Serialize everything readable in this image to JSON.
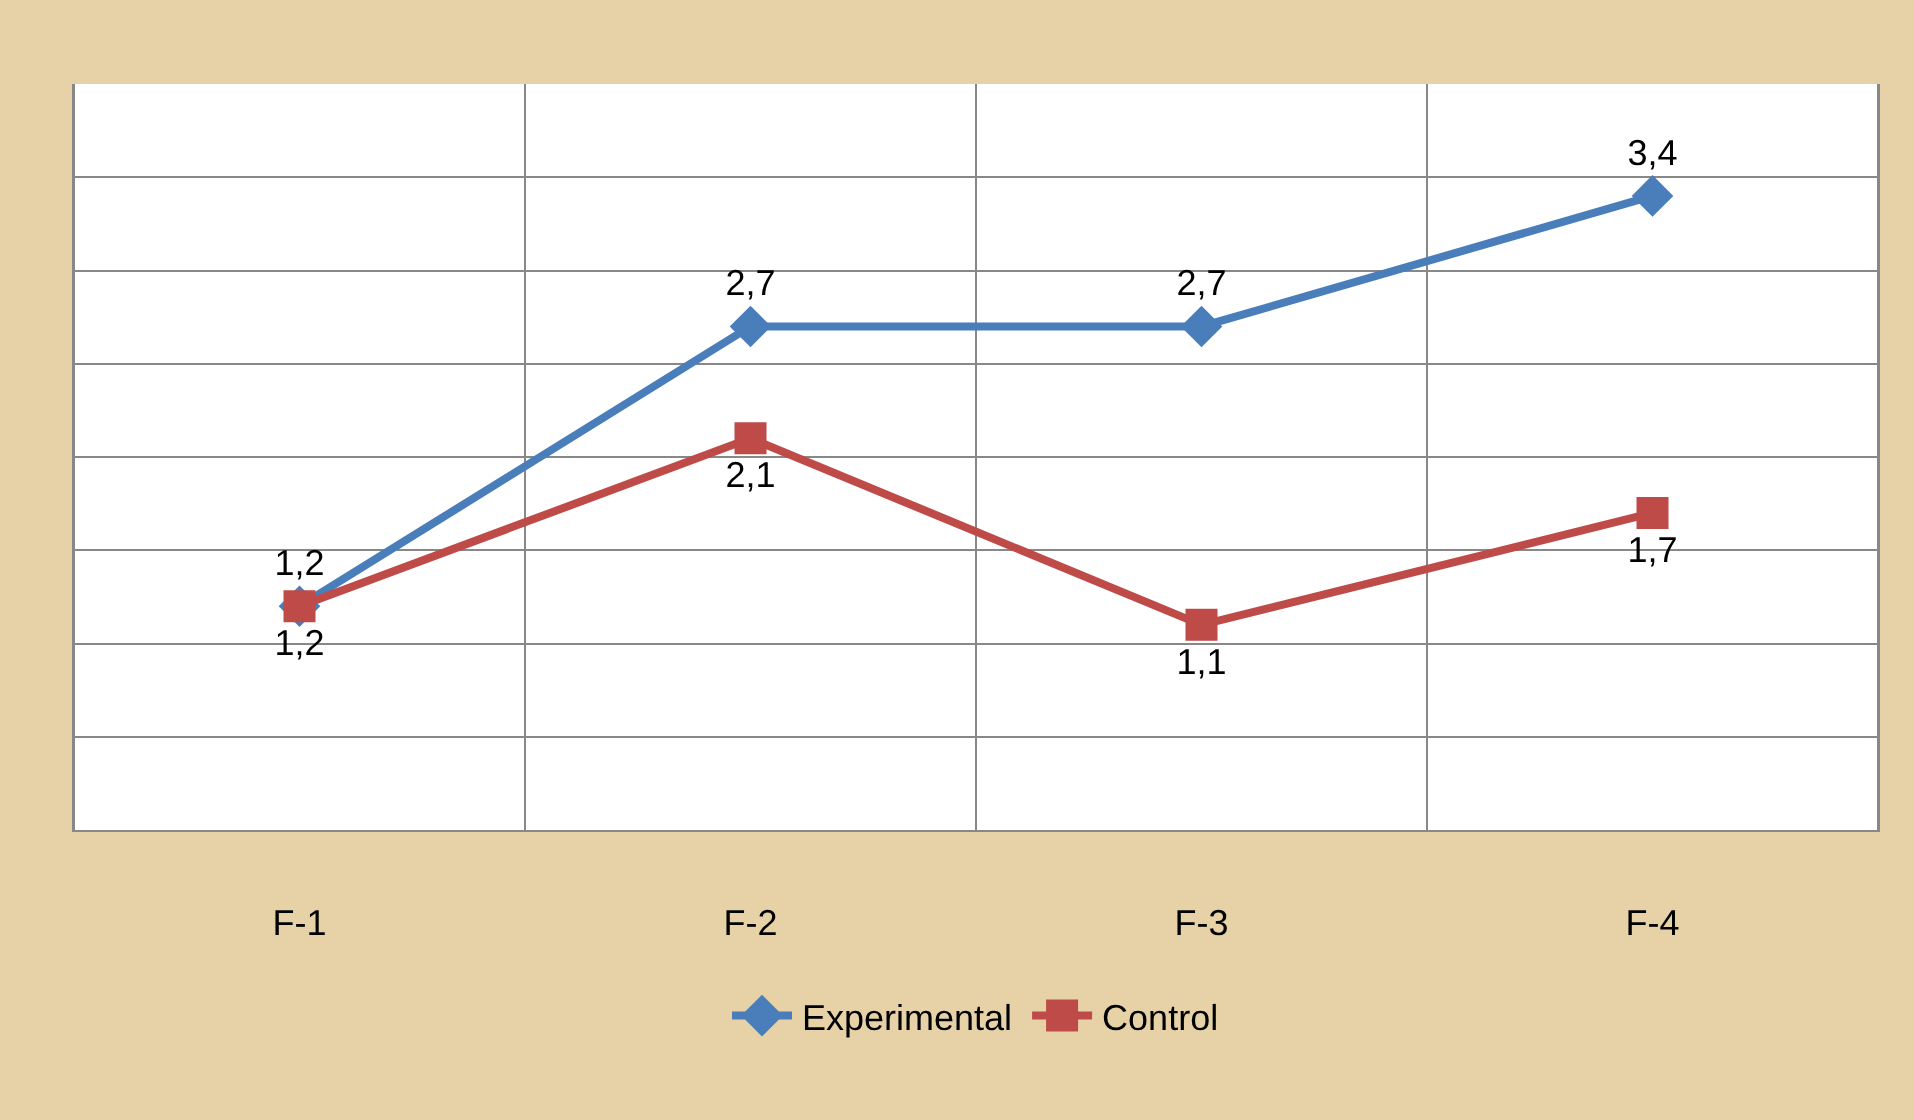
{
  "chart_data": {
    "type": "line",
    "categories": [
      "F-1",
      "F-2",
      "F-3",
      "F-4"
    ],
    "series": [
      {
        "name": "Experimental",
        "color": "#4a7ebb",
        "marker": "diamond",
        "values": [
          1.2,
          2.7,
          2.7,
          3.4
        ],
        "value_labels": [
          "1,2",
          "2,7",
          "2,7",
          "3,4"
        ]
      },
      {
        "name": "Control",
        "color": "#be4b48",
        "marker": "square",
        "values": [
          1.2,
          2.1,
          1.1,
          1.7
        ],
        "value_labels": [
          "1,2",
          "2,1",
          "1,1",
          "1,7"
        ]
      }
    ],
    "ylim": [
      0,
      4
    ],
    "yticks": [
      {
        "value": 0,
        "label": null
      },
      {
        "value": 0.5,
        "label": null
      },
      {
        "value": 1,
        "label": null
      },
      {
        "value": 1.5,
        "label": null
      },
      {
        "value": 2,
        "label": null
      },
      {
        "value": 2.5,
        "label": null
      },
      {
        "value": 3,
        "label": null
      },
      {
        "value": 3.5,
        "label": null
      },
      {
        "value": 4,
        "label": null
      }
    ],
    "tick_labels": "x",
    "grid": true,
    "legend": "bottom",
    "line_style": "solid"
  }
}
